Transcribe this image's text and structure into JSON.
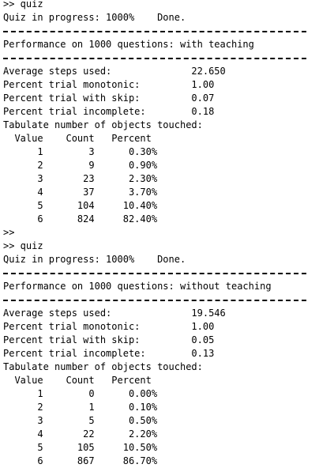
{
  "terminal": {
    "lines": [
      {
        "type": "text",
        "text": ">> quiz"
      },
      {
        "type": "text",
        "text": "Quiz in progress: 1000%    Done."
      },
      {
        "type": "rule"
      },
      {
        "type": "text",
        "text": "Performance on 1000 questions: with teaching"
      },
      {
        "type": "rule"
      },
      {
        "type": "text",
        "text": "Average steps used:              22.650"
      },
      {
        "type": "text",
        "text": "Percent trial monotonic:         1.00"
      },
      {
        "type": "text",
        "text": "Percent trial with skip:         0.07"
      },
      {
        "type": "text",
        "text": "Percent trial incomplete:        0.18"
      },
      {
        "type": "text",
        "text": "Tabulate number of objects touched:"
      },
      {
        "type": "text",
        "text": "  Value    Count   Percent"
      },
      {
        "type": "text",
        "text": "      1        3      0.30%"
      },
      {
        "type": "text",
        "text": "      2        9      0.90%"
      },
      {
        "type": "text",
        "text": "      3       23      2.30%"
      },
      {
        "type": "text",
        "text": "      4       37      3.70%"
      },
      {
        "type": "text",
        "text": "      5      104     10.40%"
      },
      {
        "type": "text",
        "text": "      6      824     82.40%"
      },
      {
        "type": "text",
        "text": ">>"
      },
      {
        "type": "text",
        "text": ">> quiz"
      },
      {
        "type": "text",
        "text": "Quiz in progress: 1000%    Done."
      },
      {
        "type": "rule"
      },
      {
        "type": "text",
        "text": "Performance on 1000 questions: without teaching"
      },
      {
        "type": "rule"
      },
      {
        "type": "text",
        "text": "Average steps used:              19.546"
      },
      {
        "type": "text",
        "text": "Percent trial monotonic:         1.00"
      },
      {
        "type": "text",
        "text": "Percent trial with skip:         0.05"
      },
      {
        "type": "text",
        "text": "Percent trial incomplete:        0.13"
      },
      {
        "type": "text",
        "text": "Tabulate number of objects touched:"
      },
      {
        "type": "text",
        "text": "  Value    Count   Percent"
      },
      {
        "type": "text",
        "text": "      1        0      0.00%"
      },
      {
        "type": "text",
        "text": "      2        1      0.10%"
      },
      {
        "type": "text",
        "text": "      3        5      0.50%"
      },
      {
        "type": "text",
        "text": "      4       22      2.20%"
      },
      {
        "type": "text",
        "text": "      5      105     10.50%"
      },
      {
        "type": "text",
        "text": "      6      867     86.70%"
      }
    ]
  }
}
